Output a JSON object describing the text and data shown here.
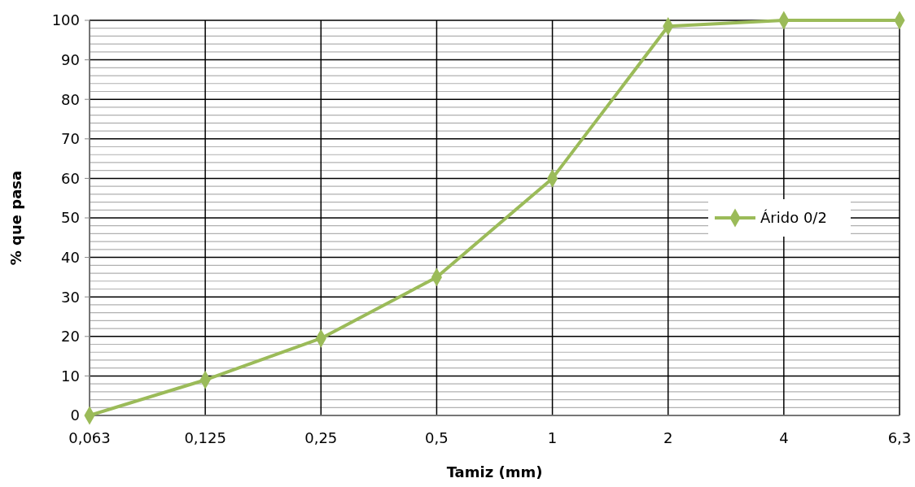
{
  "chart_data": {
    "type": "line",
    "xlabel": "Tamiz (mm)",
    "ylabel": "% que pasa",
    "categories": [
      "0,063",
      "0,125",
      "0,25",
      "0,5",
      "1",
      "2",
      "4",
      "6,3"
    ],
    "series": [
      {
        "name": "Árido 0/2",
        "color": "#9bbb59",
        "values": [
          0,
          9,
          19.5,
          35,
          60,
          98.5,
          100,
          100
        ]
      }
    ],
    "ylim": [
      0,
      100
    ],
    "yticks": [
      0,
      {
        "value": 2,
        "label": null
      },
      {
        "value": 4,
        "label": null
      },
      {
        "value": 6,
        "label": null
      },
      {
        "value": 8,
        "label": null
      },
      10,
      {
        "value": 12,
        "label": null
      },
      {
        "value": 14,
        "label": null
      },
      {
        "value": 16,
        "label": null
      },
      {
        "value": 18,
        "label": null
      },
      20,
      {
        "value": 22,
        "label": null
      },
      {
        "value": 24,
        "label": null
      },
      {
        "value": 26,
        "label": null
      },
      {
        "value": 28,
        "label": null
      },
      30,
      {
        "value": 32,
        "label": null
      },
      {
        "value": 34,
        "label": null
      },
      {
        "value": 36,
        "label": null
      },
      {
        "value": 38,
        "label": null
      },
      40,
      {
        "value": 42,
        "label": null
      },
      {
        "value": 44,
        "label": null
      },
      {
        "value": 46,
        "label": null
      },
      {
        "value": 48,
        "label": null
      },
      50,
      {
        "value": 52,
        "label": null
      },
      {
        "value": 54,
        "label": null
      },
      {
        "value": 56,
        "label": null
      },
      {
        "value": 58,
        "label": null
      },
      60,
      {
        "value": 62,
        "label": null
      },
      {
        "value": 64,
        "label": null
      },
      {
        "value": 66,
        "label": null
      },
      {
        "value": 68,
        "label": null
      },
      70,
      {
        "value": 72,
        "label": null
      },
      {
        "value": 74,
        "label": null
      },
      {
        "value": 76,
        "label": null
      },
      {
        "value": 78,
        "label": null
      },
      80,
      {
        "value": 82,
        "label": null
      },
      {
        "value": 84,
        "label": null
      },
      {
        "value": 86,
        "label": null
      },
      {
        "value": 88,
        "label": null
      },
      90,
      {
        "value": 92,
        "label": null
      },
      {
        "value": 94,
        "label": null
      },
      {
        "value": 96,
        "label": null
      },
      {
        "value": 98,
        "label": null
      },
      100
    ],
    "grid": true,
    "legend": "right",
    "marker": "diamond",
    "line_style": "solid"
  }
}
